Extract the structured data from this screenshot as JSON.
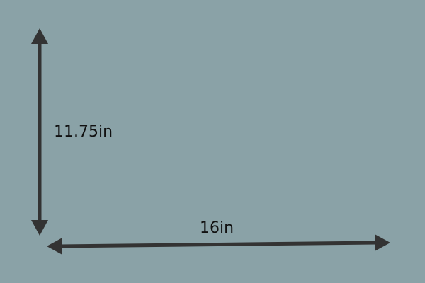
{
  "colors": {
    "background": "#8aa2a7",
    "arrow": "#333333",
    "text": "#111111"
  },
  "dimensions": {
    "height_label": "11.75in",
    "width_label": "16in"
  }
}
